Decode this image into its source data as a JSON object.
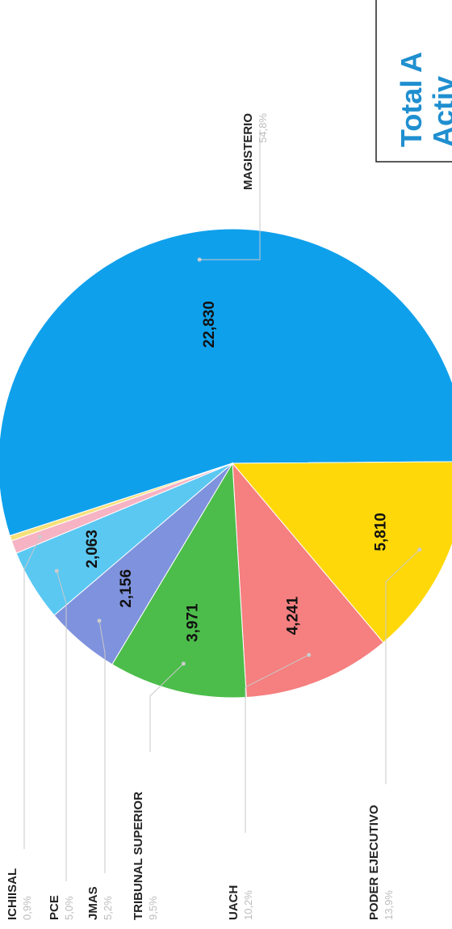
{
  "chart_data": {
    "type": "pie",
    "title": "Total A Activ",
    "title_lines": [
      "Total A",
      "Activ"
    ],
    "slices": [
      {
        "label": "MAGISTERIO",
        "value": 22830,
        "value_text": "22,830",
        "percent_text": "54,8%",
        "color": "#0fa0ec"
      },
      {
        "label": "PODER EJECUTIVO",
        "value": 5810,
        "value_text": "5,810",
        "percent_text": "13,9%",
        "color": "#ffd80a"
      },
      {
        "label": "UACH",
        "value": 4241,
        "value_text": "4,241",
        "percent_text": "10,2%",
        "color": "#f67f7f"
      },
      {
        "label": "TRIBUNAL SUPERIOR",
        "value": 3971,
        "value_text": "3,971",
        "percent_text": "9,5%",
        "color": "#4cbd4a"
      },
      {
        "label": "JMAS",
        "value": 2156,
        "value_text": "2,156",
        "percent_text": "5,2%",
        "color": "#7f92dd"
      },
      {
        "label": "PCE",
        "value": 2063,
        "value_text": "2,063",
        "percent_text": "5,0%",
        "color": "#5bc8f2"
      },
      {
        "label": "ICHIISAL",
        "value": 375,
        "value_text": "",
        "percent_text": "0,9%",
        "color": "#f6b3c4"
      },
      {
        "label": "",
        "value": 150,
        "value_text": "",
        "percent_text": "",
        "color": "#f7e07a"
      }
    ]
  }
}
